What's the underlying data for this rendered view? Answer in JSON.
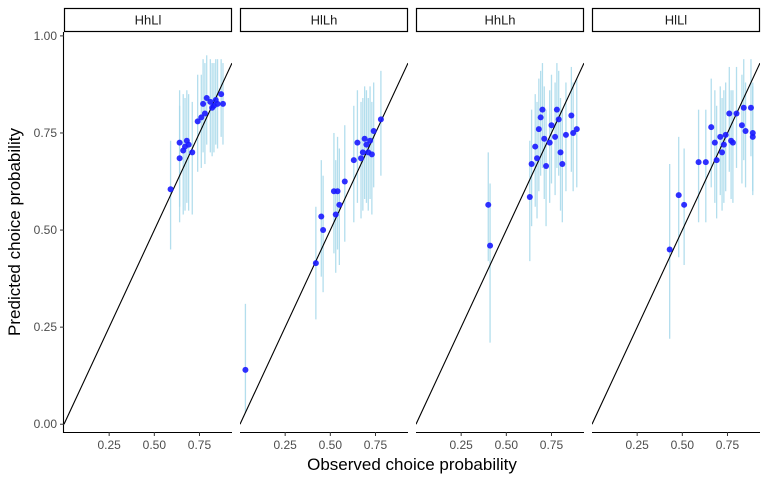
{
  "chart_data": {
    "type": "scatter",
    "xlabel": "Observed choice probability",
    "ylabel": "Predicted choice probability",
    "xlim": [
      0,
      0.93
    ],
    "ylim": [
      -0.02,
      1.01
    ],
    "x_ticks": [
      0.25,
      0.5,
      0.75
    ],
    "x_tick_labels": [
      "0.25",
      "0.50",
      "0.75"
    ],
    "y_ticks": [
      0,
      0.25,
      0.5,
      0.75,
      1
    ],
    "y_tick_labels": [
      "0.00",
      "0.25",
      "0.50",
      "0.75",
      "1.00"
    ],
    "reference_line": "identity",
    "grid": false,
    "colors": {
      "points": "#1a1aff",
      "error_bars": "#a6d8ea",
      "reference_line": "#000000",
      "strip_border": "#000000"
    },
    "panels": [
      {
        "title": "HhLl",
        "points": [
          {
            "x": 0.59,
            "y": 0.605,
            "lo": 0.45,
            "hi": 0.73
          },
          {
            "x": 0.64,
            "y": 0.685,
            "lo": 0.52,
            "hi": 0.82
          },
          {
            "x": 0.64,
            "y": 0.725,
            "lo": 0.56,
            "hi": 0.86
          },
          {
            "x": 0.66,
            "y": 0.705,
            "lo": 0.54,
            "hi": 0.85
          },
          {
            "x": 0.67,
            "y": 0.715,
            "lo": 0.55,
            "hi": 0.84
          },
          {
            "x": 0.68,
            "y": 0.73,
            "lo": 0.57,
            "hi": 0.86
          },
          {
            "x": 0.69,
            "y": 0.72,
            "lo": 0.55,
            "hi": 0.85
          },
          {
            "x": 0.71,
            "y": 0.7,
            "lo": 0.54,
            "hi": 0.83
          },
          {
            "x": 0.74,
            "y": 0.78,
            "lo": 0.65,
            "hi": 0.9
          },
          {
            "x": 0.76,
            "y": 0.79,
            "lo": 0.66,
            "hi": 0.9
          },
          {
            "x": 0.77,
            "y": 0.825,
            "lo": 0.7,
            "hi": 0.94
          },
          {
            "x": 0.78,
            "y": 0.8,
            "lo": 0.67,
            "hi": 0.93
          },
          {
            "x": 0.79,
            "y": 0.84,
            "lo": 0.72,
            "hi": 0.95
          },
          {
            "x": 0.81,
            "y": 0.83,
            "lo": 0.7,
            "hi": 0.94
          },
          {
            "x": 0.82,
            "y": 0.815,
            "lo": 0.69,
            "hi": 0.93
          },
          {
            "x": 0.83,
            "y": 0.82,
            "lo": 0.7,
            "hi": 0.93
          },
          {
            "x": 0.84,
            "y": 0.835,
            "lo": 0.72,
            "hi": 0.94
          },
          {
            "x": 0.85,
            "y": 0.825,
            "lo": 0.71,
            "hi": 0.94
          },
          {
            "x": 0.87,
            "y": 0.85,
            "lo": 0.74,
            "hi": 0.94
          },
          {
            "x": 0.88,
            "y": 0.825,
            "lo": 0.72,
            "hi": 0.93
          }
        ]
      },
      {
        "title": "HlLh",
        "points": [
          {
            "x": 0.03,
            "y": 0.14,
            "lo": 0.03,
            "hi": 0.31
          },
          {
            "x": 0.42,
            "y": 0.415,
            "lo": 0.27,
            "hi": 0.56
          },
          {
            "x": 0.45,
            "y": 0.535,
            "lo": 0.38,
            "hi": 0.68
          },
          {
            "x": 0.46,
            "y": 0.5,
            "lo": 0.34,
            "hi": 0.64
          },
          {
            "x": 0.52,
            "y": 0.6,
            "lo": 0.44,
            "hi": 0.75
          },
          {
            "x": 0.53,
            "y": 0.54,
            "lo": 0.39,
            "hi": 0.68
          },
          {
            "x": 0.54,
            "y": 0.6,
            "lo": 0.45,
            "hi": 0.74
          },
          {
            "x": 0.55,
            "y": 0.565,
            "lo": 0.41,
            "hi": 0.71
          },
          {
            "x": 0.58,
            "y": 0.625,
            "lo": 0.47,
            "hi": 0.77
          },
          {
            "x": 0.63,
            "y": 0.68,
            "lo": 0.52,
            "hi": 0.82
          },
          {
            "x": 0.65,
            "y": 0.725,
            "lo": 0.57,
            "hi": 0.86
          },
          {
            "x": 0.67,
            "y": 0.685,
            "lo": 0.53,
            "hi": 0.83
          },
          {
            "x": 0.68,
            "y": 0.7,
            "lo": 0.55,
            "hi": 0.84
          },
          {
            "x": 0.69,
            "y": 0.735,
            "lo": 0.58,
            "hi": 0.87
          },
          {
            "x": 0.7,
            "y": 0.72,
            "lo": 0.57,
            "hi": 0.86
          },
          {
            "x": 0.71,
            "y": 0.7,
            "lo": 0.55,
            "hi": 0.84
          },
          {
            "x": 0.72,
            "y": 0.73,
            "lo": 0.58,
            "hi": 0.87
          },
          {
            "x": 0.73,
            "y": 0.695,
            "lo": 0.54,
            "hi": 0.83
          },
          {
            "x": 0.74,
            "y": 0.755,
            "lo": 0.61,
            "hi": 0.88
          },
          {
            "x": 0.78,
            "y": 0.785,
            "lo": 0.64,
            "hi": 0.91
          }
        ]
      },
      {
        "title": "HhLh",
        "points": [
          {
            "x": 0.4,
            "y": 0.565,
            "lo": 0.42,
            "hi": 0.7
          },
          {
            "x": 0.41,
            "y": 0.46,
            "lo": 0.21,
            "hi": 0.62
          },
          {
            "x": 0.63,
            "y": 0.585,
            "lo": 0.42,
            "hi": 0.73
          },
          {
            "x": 0.64,
            "y": 0.67,
            "lo": 0.51,
            "hi": 0.81
          },
          {
            "x": 0.66,
            "y": 0.715,
            "lo": 0.56,
            "hi": 0.85
          },
          {
            "x": 0.67,
            "y": 0.685,
            "lo": 0.53,
            "hi": 0.83
          },
          {
            "x": 0.68,
            "y": 0.76,
            "lo": 0.6,
            "hi": 0.89
          },
          {
            "x": 0.69,
            "y": 0.79,
            "lo": 0.64,
            "hi": 0.91
          },
          {
            "x": 0.7,
            "y": 0.81,
            "lo": 0.66,
            "hi": 0.93
          },
          {
            "x": 0.71,
            "y": 0.735,
            "lo": 0.58,
            "hi": 0.87
          },
          {
            "x": 0.72,
            "y": 0.665,
            "lo": 0.51,
            "hi": 0.81
          },
          {
            "x": 0.74,
            "y": 0.725,
            "lo": 0.57,
            "hi": 0.86
          },
          {
            "x": 0.75,
            "y": 0.77,
            "lo": 0.62,
            "hi": 0.9
          },
          {
            "x": 0.77,
            "y": 0.74,
            "lo": 0.59,
            "hi": 0.88
          },
          {
            "x": 0.78,
            "y": 0.81,
            "lo": 0.66,
            "hi": 0.93
          },
          {
            "x": 0.79,
            "y": 0.785,
            "lo": 0.64,
            "hi": 0.91
          },
          {
            "x": 0.8,
            "y": 0.7,
            "lo": 0.55,
            "hi": 0.84
          },
          {
            "x": 0.81,
            "y": 0.67,
            "lo": 0.52,
            "hi": 0.81
          },
          {
            "x": 0.83,
            "y": 0.745,
            "lo": 0.6,
            "hi": 0.88
          },
          {
            "x": 0.86,
            "y": 0.795,
            "lo": 0.65,
            "hi": 0.92
          },
          {
            "x": 0.87,
            "y": 0.75,
            "lo": 0.6,
            "hi": 0.88
          },
          {
            "x": 0.89,
            "y": 0.76,
            "lo": 0.61,
            "hi": 0.89
          }
        ]
      },
      {
        "title": "HlLl",
        "points": [
          {
            "x": 0.43,
            "y": 0.45,
            "lo": 0.22,
            "hi": 0.67
          },
          {
            "x": 0.48,
            "y": 0.59,
            "lo": 0.43,
            "hi": 0.74
          },
          {
            "x": 0.51,
            "y": 0.565,
            "lo": 0.41,
            "hi": 0.71
          },
          {
            "x": 0.59,
            "y": 0.675,
            "lo": 0.52,
            "hi": 0.81
          },
          {
            "x": 0.63,
            "y": 0.675,
            "lo": 0.52,
            "hi": 0.81
          },
          {
            "x": 0.66,
            "y": 0.765,
            "lo": 0.61,
            "hi": 0.89
          },
          {
            "x": 0.68,
            "y": 0.725,
            "lo": 0.57,
            "hi": 0.86
          },
          {
            "x": 0.69,
            "y": 0.68,
            "lo": 0.53,
            "hi": 0.82
          },
          {
            "x": 0.71,
            "y": 0.74,
            "lo": 0.59,
            "hi": 0.87
          },
          {
            "x": 0.72,
            "y": 0.7,
            "lo": 0.55,
            "hi": 0.84
          },
          {
            "x": 0.73,
            "y": 0.72,
            "lo": 0.57,
            "hi": 0.86
          },
          {
            "x": 0.74,
            "y": 0.745,
            "lo": 0.6,
            "hi": 0.88
          },
          {
            "x": 0.76,
            "y": 0.8,
            "lo": 0.65,
            "hi": 0.92
          },
          {
            "x": 0.77,
            "y": 0.73,
            "lo": 0.58,
            "hi": 0.86
          },
          {
            "x": 0.78,
            "y": 0.725,
            "lo": 0.57,
            "hi": 0.86
          },
          {
            "x": 0.8,
            "y": 0.8,
            "lo": 0.66,
            "hi": 0.92
          },
          {
            "x": 0.83,
            "y": 0.77,
            "lo": 0.62,
            "hi": 0.9
          },
          {
            "x": 0.84,
            "y": 0.815,
            "lo": 0.68,
            "hi": 0.94
          },
          {
            "x": 0.85,
            "y": 0.755,
            "lo": 0.61,
            "hi": 0.88
          },
          {
            "x": 0.88,
            "y": 0.815,
            "lo": 0.69,
            "hi": 0.94
          },
          {
            "x": 0.89,
            "y": 0.75,
            "lo": 0.6,
            "hi": 0.88
          },
          {
            "x": 0.89,
            "y": 0.74,
            "lo": 0.59,
            "hi": 0.87
          }
        ]
      }
    ]
  }
}
